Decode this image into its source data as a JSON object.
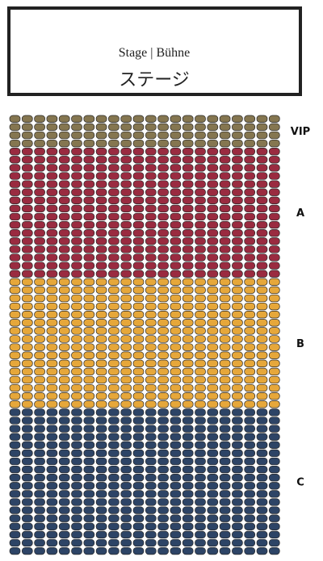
{
  "stage": {
    "title": "Stage | Bühne",
    "subtitle": "ステージ"
  },
  "sections": [
    {
      "label": "VIP",
      "color": "#857650"
    },
    {
      "label": "A",
      "color": "#9a2b40"
    },
    {
      "label": "B",
      "color": "#e6a73a"
    },
    {
      "label": "C",
      "color": "#2d4466"
    }
  ]
}
